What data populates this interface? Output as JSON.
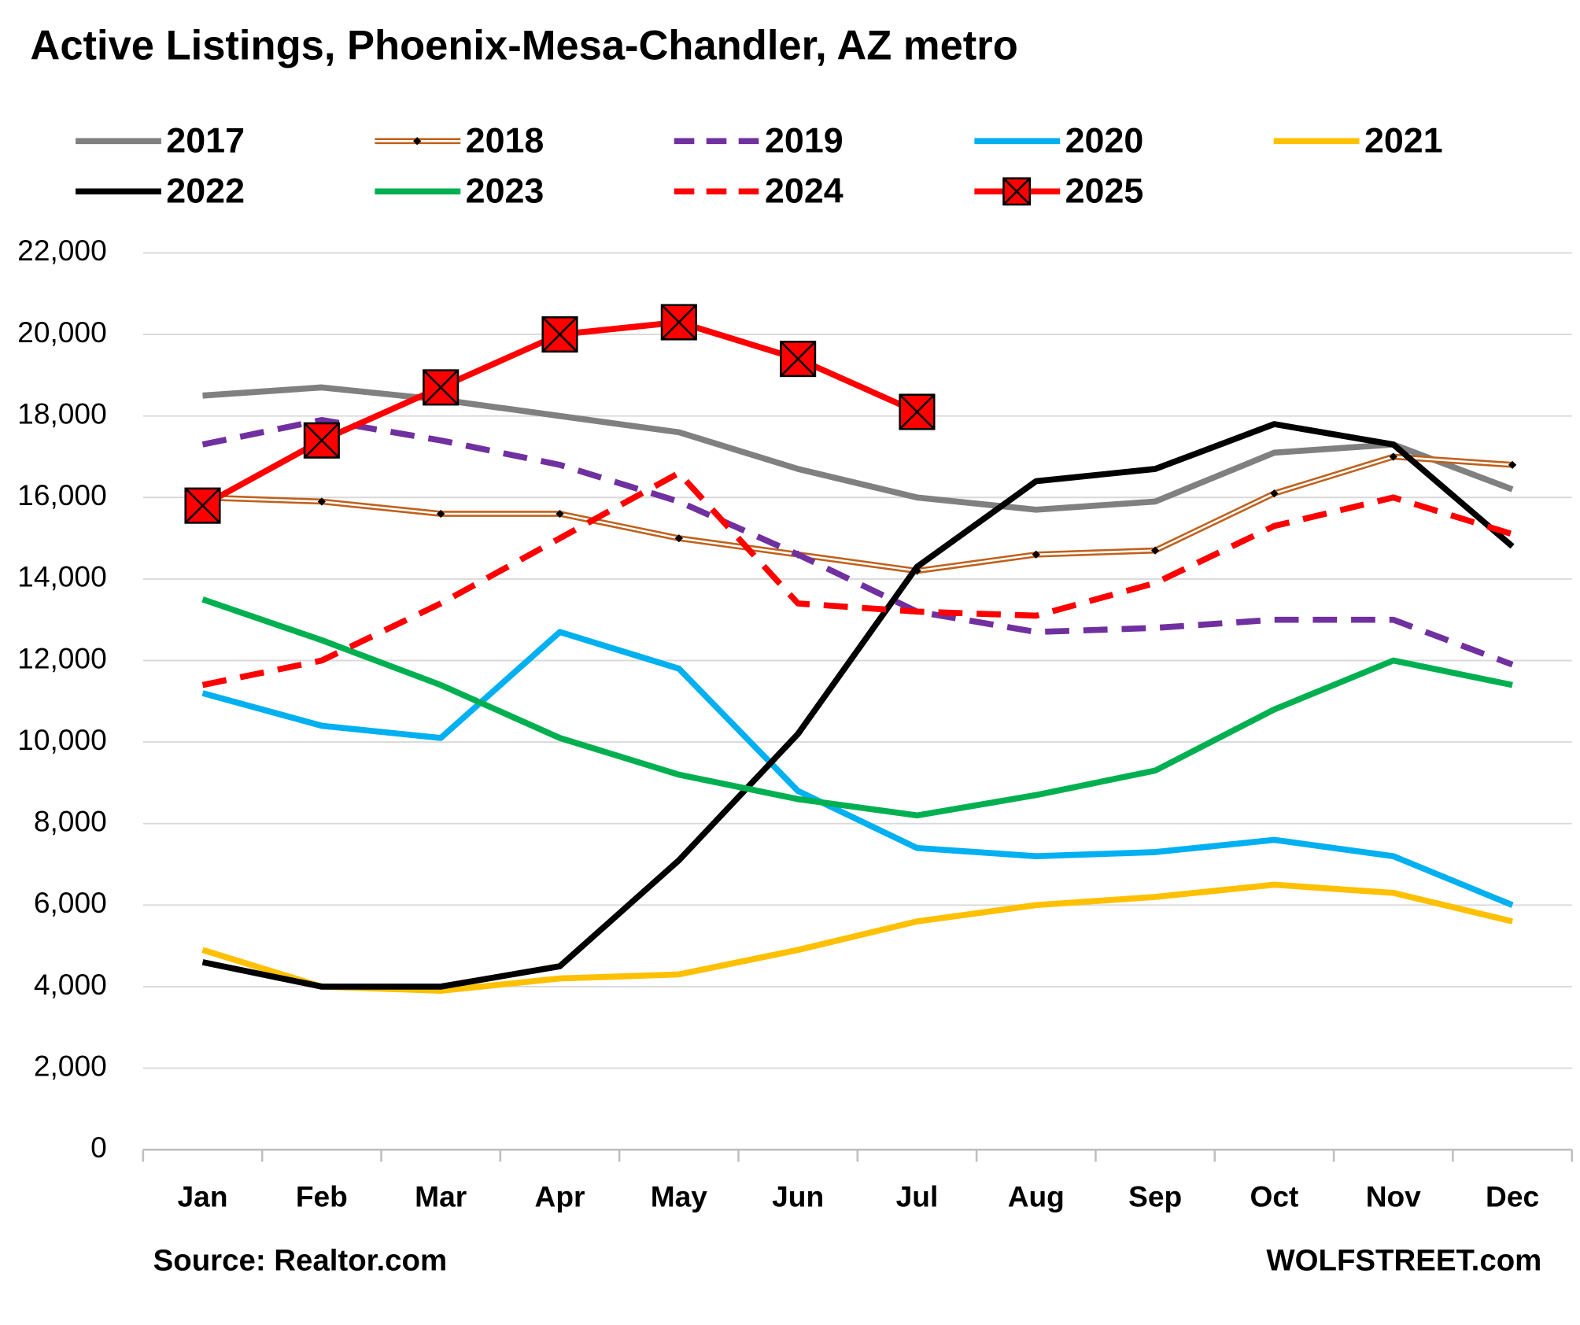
{
  "chart_data": {
    "type": "line",
    "title": "Active Listings, Phoenix-Mesa-Chandler, AZ metro",
    "source": "Source: Realtor.com",
    "credit": "WOLFSTREET.com",
    "categories": [
      "Jan",
      "Feb",
      "Mar",
      "Apr",
      "May",
      "Jun",
      "Jul",
      "Aug",
      "Sep",
      "Oct",
      "Nov",
      "Dec"
    ],
    "ylim": [
      0,
      22000
    ],
    "yticks": [
      0,
      {
        "value": 2000,
        "label": "2,000"
      },
      {
        "value": 4000,
        "label": "4,000"
      },
      {
        "value": 6000,
        "label": "6,000"
      },
      {
        "value": 8000,
        "label": "8,000"
      },
      {
        "value": 10000,
        "label": "10,000"
      },
      {
        "value": 12000,
        "label": "12,000"
      },
      {
        "value": 14000,
        "label": "14,000"
      },
      {
        "value": 16000,
        "label": "16,000"
      },
      {
        "value": 18000,
        "label": "18,000"
      },
      {
        "value": 20000,
        "label": "20,000"
      },
      {
        "value": 22000,
        "label": "22,000"
      }
    ],
    "grid": true,
    "series": [
      {
        "name": "2017",
        "color": "#808080",
        "values": [
          18500,
          18700,
          18400,
          18000,
          17600,
          16700,
          16000,
          15700,
          15900,
          17100,
          17300,
          16200
        ]
      },
      {
        "name": "2018",
        "color": "#c0601c",
        "double": true,
        "marker": "diamond",
        "values": [
          16000,
          15900,
          15600,
          15600,
          15000,
          14600,
          14200,
          14600,
          14700,
          16100,
          17000,
          16800
        ]
      },
      {
        "name": "2019",
        "color": "#7030a0",
        "dashed": true,
        "values": [
          17300,
          17900,
          17400,
          16800,
          15900,
          14600,
          13200,
          12700,
          12800,
          13000,
          13000,
          11900
        ]
      },
      {
        "name": "2020",
        "color": "#00b0f0",
        "values": [
          11200,
          10400,
          10100,
          12700,
          11800,
          8800,
          7400,
          7200,
          7300,
          7600,
          7200,
          6000
        ]
      },
      {
        "name": "2021",
        "color": "#ffc000",
        "values": [
          4900,
          4000,
          3900,
          4200,
          4300,
          4900,
          5600,
          6000,
          6200,
          6500,
          6300,
          5600
        ]
      },
      {
        "name": "2022",
        "color": "#000000",
        "values": [
          4600,
          4000,
          4000,
          4500,
          7100,
          10200,
          14300,
          16400,
          16700,
          17800,
          17300,
          14800
        ]
      },
      {
        "name": "2023",
        "color": "#00b050",
        "values": [
          13500,
          12500,
          11400,
          10100,
          9200,
          8600,
          8200,
          8700,
          9300,
          10800,
          12000,
          11400
        ]
      },
      {
        "name": "2024",
        "color": "#ff0000",
        "dashed": true,
        "values": [
          11400,
          12000,
          13400,
          15000,
          16600,
          13400,
          13200,
          13100,
          13900,
          15300,
          16000,
          15100
        ]
      },
      {
        "name": "2025",
        "color": "#ff0000",
        "marker": "boxed-x",
        "values": [
          15800,
          17400,
          18700,
          20000,
          20300,
          19400,
          18100,
          null,
          null,
          null,
          null,
          null
        ]
      }
    ]
  }
}
